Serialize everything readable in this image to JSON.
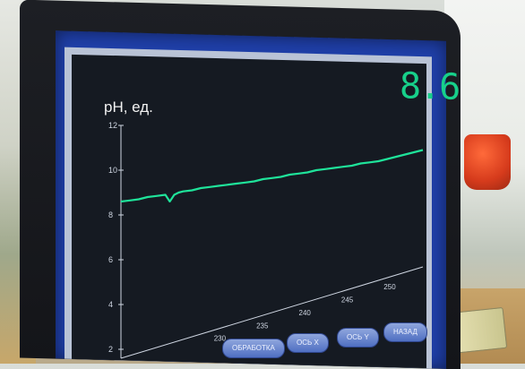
{
  "display": {
    "readout": "8.6",
    "y_axis_label": "pH, ед."
  },
  "chart_data": {
    "type": "line",
    "ylabel": "pH, ед.",
    "ylim": [
      2,
      12
    ],
    "y_ticks": [
      "12",
      "10",
      "8",
      "6",
      "4",
      "2"
    ],
    "x_ticks": [
      "230",
      "235",
      "240",
      "245",
      "250"
    ],
    "grid": false,
    "series": [
      {
        "x": [
          0,
          10,
          20,
          30,
          40,
          50,
          55,
          60,
          65,
          70,
          80,
          90,
          100,
          110,
          120,
          130,
          140,
          150,
          160,
          170,
          180,
          190,
          200,
          210,
          220,
          230,
          240,
          250,
          260,
          270,
          280,
          290,
          300,
          310,
          320,
          330,
          340
        ],
        "values": [
          8.6,
          8.65,
          8.7,
          8.8,
          8.85,
          8.9,
          8.6,
          8.9,
          9.0,
          9.05,
          9.1,
          9.2,
          9.25,
          9.3,
          9.35,
          9.4,
          9.45,
          9.5,
          9.6,
          9.65,
          9.7,
          9.8,
          9.85,
          9.9,
          10.0,
          10.05,
          10.1,
          10.15,
          10.2,
          10.3,
          10.35,
          10.4,
          10.5,
          10.6,
          10.7,
          10.8,
          10.9
        ]
      }
    ]
  },
  "buttons": [
    {
      "label": "ОБРАБОТКА"
    },
    {
      "label": "ОСЬ X"
    },
    {
      "label": "ОСЬ Y"
    },
    {
      "label": "НАЗАД"
    }
  ]
}
